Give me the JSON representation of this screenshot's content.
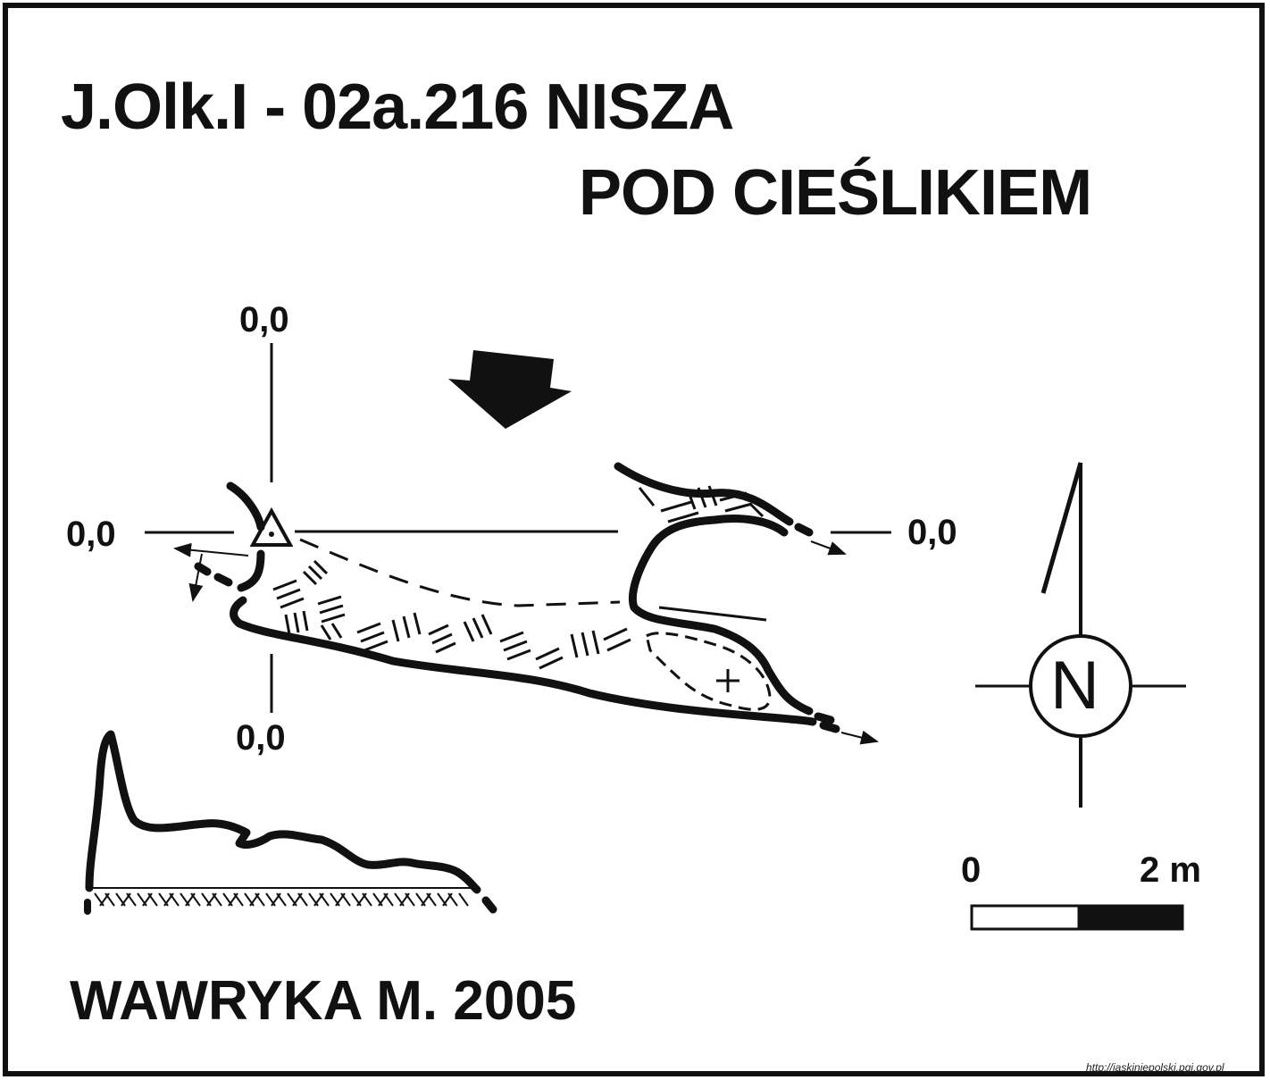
{
  "title": {
    "line1": "J.Olk.I - 02a.216  NISZA",
    "line2": "POD CIEŚLIKIEM"
  },
  "coordinates": {
    "top": "0,0",
    "left": "0,0",
    "right": "0,0",
    "bottom": "0,0"
  },
  "compass": {
    "letter": "N"
  },
  "scale_bar": {
    "start_label": "0",
    "end_label": "2 m"
  },
  "author": "WAWRYKA M. 2005",
  "source_url": "http://jaskiniepolski.pgi.gov.pl",
  "colors": {
    "ink": "#111111",
    "background": "#ffffff"
  }
}
